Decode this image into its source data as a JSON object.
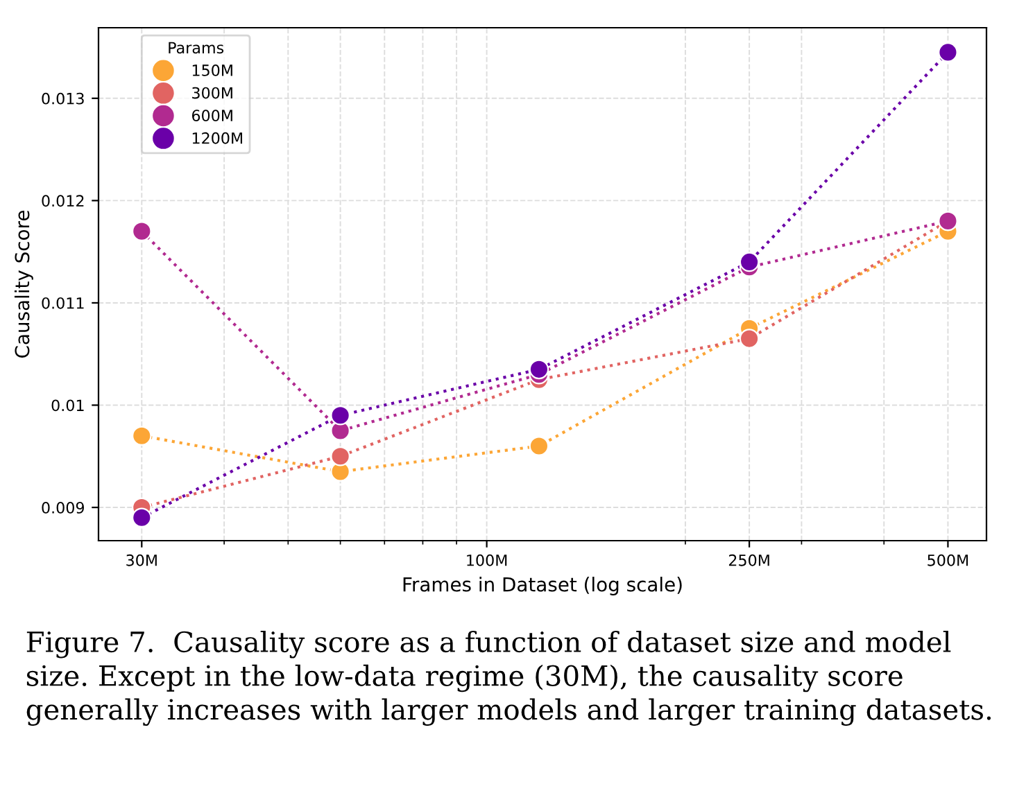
{
  "chart_data": {
    "type": "line",
    "xlabel": "Frames in Dataset (log scale)",
    "ylabel": "Causality Score",
    "legend_title": "Params",
    "x": [
      30,
      60,
      120,
      250,
      500
    ],
    "series": [
      {
        "name": "150M",
        "color": "#fca636",
        "values": [
          0.0097,
          0.00935,
          0.0096,
          0.01075,
          0.0117
        ]
      },
      {
        "name": "300M",
        "color": "#e16462",
        "values": [
          0.009,
          0.0095,
          0.01025,
          0.01065,
          0.0118
        ]
      },
      {
        "name": "600M",
        "color": "#b12a90",
        "values": [
          0.0117,
          0.00975,
          0.0103,
          0.01135,
          0.0118
        ]
      },
      {
        "name": "1200M",
        "color": "#6a00a8",
        "values": [
          0.0089,
          0.0099,
          0.01035,
          0.0114,
          0.01345
        ]
      }
    ],
    "log": "x",
    "xlim": [
      25.8,
      572
    ],
    "ylim": [
      0.008675,
      0.01369
    ],
    "xticks": [
      {
        "value": 30,
        "label": "30M"
      },
      {
        "value": 100,
        "label": "100M"
      },
      {
        "value": 250,
        "label": "250M"
      },
      {
        "value": 500,
        "label": "500M"
      }
    ],
    "yticks": [
      0.009,
      0.01,
      0.011,
      0.012,
      0.013
    ],
    "grid": true,
    "legend": "top left",
    "marker": "circle",
    "line_style": "dotted",
    "annotations": [
      "Figure 7.  Causality score as a function of dataset size and model size. Except in the low-data regime (30M), the causality score generally increases with larger models and larger training datasets."
    ]
  }
}
